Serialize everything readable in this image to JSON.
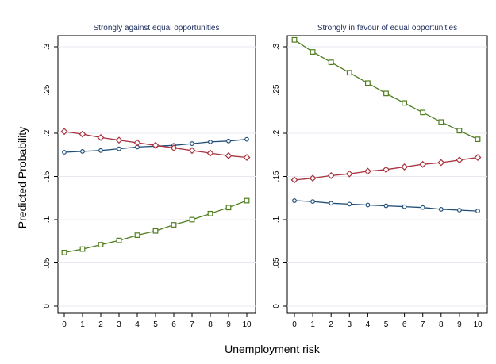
{
  "chart_data": {
    "type": "line",
    "ylabel": "Predicted Probability",
    "xlabel": "Unemployment risk",
    "x": [
      0,
      1,
      2,
      3,
      4,
      5,
      6,
      7,
      8,
      9,
      10
    ],
    "x_tick_labels": [
      "0",
      "1",
      "2",
      "3",
      "4",
      "5",
      "6",
      "7",
      "8",
      "9",
      "10"
    ],
    "ylim": [
      0,
      0.31
    ],
    "y_ticks": [
      0,
      0.05,
      0.1,
      0.15,
      0.2,
      0.25,
      0.3
    ],
    "y_tick_labels": [
      "0",
      ".05",
      ".1",
      ".15",
      ".2",
      ".25",
      ".3"
    ],
    "grid": true,
    "series_styles": [
      {
        "color": "#1f4e79",
        "marker": "circle"
      },
      {
        "color": "#a8323e",
        "marker": "diamond"
      },
      {
        "color": "#4f7d1e",
        "marker": "square"
      }
    ],
    "panels": [
      {
        "title": "Strongly against equal opportunities",
        "series": [
          {
            "values": [
              0.178,
              0.179,
              0.18,
              0.182,
              0.184,
              0.185,
              0.186,
              0.188,
              0.19,
              0.191,
              0.193
            ]
          },
          {
            "values": [
              0.202,
              0.199,
              0.195,
              0.192,
              0.189,
              0.186,
              0.183,
              0.18,
              0.177,
              0.174,
              0.172
            ]
          },
          {
            "values": [
              0.062,
              0.066,
              0.071,
              0.076,
              0.082,
              0.087,
              0.094,
              0.1,
              0.107,
              0.114,
              0.122
            ]
          }
        ]
      },
      {
        "title": "Strongly in favour of equal opportunities",
        "series": [
          {
            "values": [
              0.122,
              0.121,
              0.119,
              0.118,
              0.117,
              0.116,
              0.115,
              0.114,
              0.112,
              0.111,
              0.11
            ]
          },
          {
            "values": [
              0.146,
              0.148,
              0.151,
              0.153,
              0.156,
              0.158,
              0.161,
              0.164,
              0.166,
              0.169,
              0.172
            ]
          },
          {
            "values": [
              0.308,
              0.294,
              0.282,
              0.27,
              0.258,
              0.246,
              0.235,
              0.224,
              0.213,
              0.203,
              0.193
            ]
          }
        ]
      }
    ]
  }
}
